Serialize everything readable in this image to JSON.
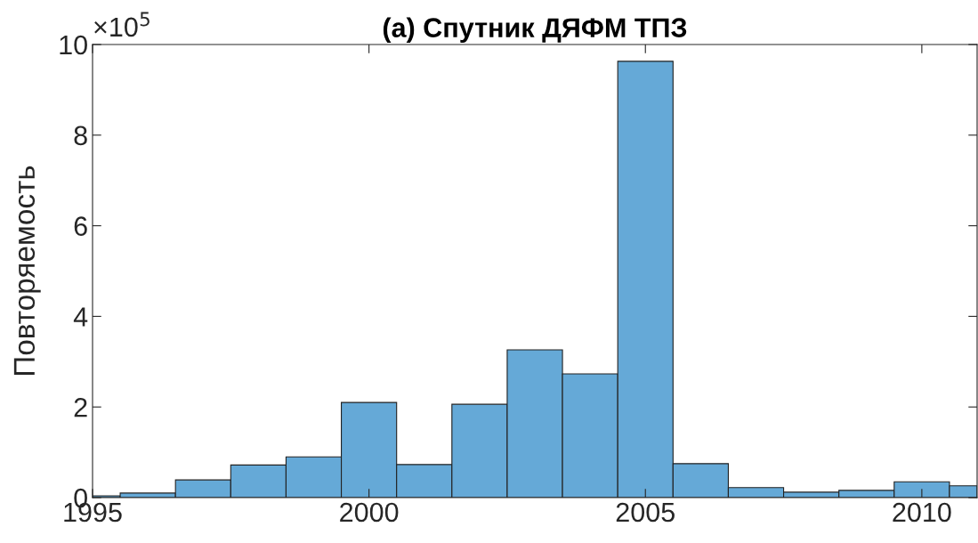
{
  "chart_data": {
    "type": "histogram",
    "title": "(a) Спутник ДЯФМ ТПЗ",
    "ylabel": "Повторяемость",
    "annotations": [
      "×10$^{5}$"
    ],
    "bins": [
      1995,
      1995.5,
      1996.5,
      1997.5,
      1998.5,
      1999.5,
      2000.5,
      2001.5,
      2002.5,
      2003.5,
      2004.5,
      2005.5,
      2006.5,
      2007.5,
      2008.5,
      2009.5,
      2010.5,
      2011
    ],
    "values": [
      0.04,
      0.1,
      0.39,
      0.72,
      0.9,
      2.1,
      0.73,
      2.06,
      3.26,
      2.73,
      9.63,
      0.75,
      0.22,
      0.12,
      0.16,
      0.35,
      0.26
    ],
    "color": "#65a9d7",
    "xlim": [
      1995,
      2011
    ],
    "xticks": [
      1995,
      2000,
      2005,
      2010
    ],
    "ylim": [
      0,
      10
    ],
    "yticks": [
      0,
      2,
      4,
      6,
      8,
      10
    ],
    "grid": false
  }
}
